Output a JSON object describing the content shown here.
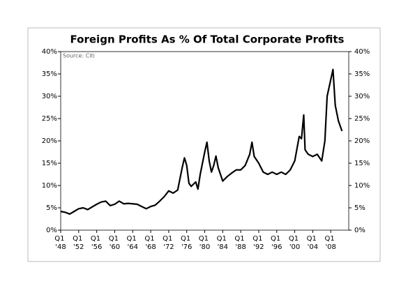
{
  "chart_data": {
    "type": "line",
    "title": "Foreign Profits As % Of Total Corporate Profits",
    "source": "Source: Citi",
    "x": [
      1948,
      1949,
      1950,
      1951,
      1952,
      1953,
      1954,
      1955,
      1956,
      1957,
      1958,
      1959,
      1960,
      1961,
      1962,
      1963,
      1964,
      1965,
      1966,
      1967,
      1968,
      1969,
      1970,
      1971,
      1972,
      1973,
      1974,
      1975,
      1975.5,
      1976,
      1976.5,
      1977,
      1978,
      1978.5,
      1979,
      1980,
      1980.5,
      1981,
      1981.5,
      1982,
      1982.5,
      1983,
      1984,
      1985,
      1986,
      1987,
      1988,
      1989,
      1990,
      1990.5,
      1991,
      1992,
      1993,
      1994,
      1995,
      1996,
      1997,
      1998,
      1999,
      2000,
      2001,
      2001.5,
      2002,
      2002.3,
      2003,
      2004,
      2005,
      2006,
      2006.7,
      2007.2,
      2008.5,
      2009,
      2009.7,
      2010.5
    ],
    "series": [
      {
        "color": "#000000",
        "values": [
          4.2,
          4.0,
          3.6,
          4.2,
          4.8,
          5.0,
          4.6,
          5.2,
          5.8,
          6.3,
          6.5,
          5.5,
          5.8,
          6.5,
          5.9,
          6.0,
          5.9,
          5.8,
          5.3,
          4.8,
          5.3,
          5.6,
          6.5,
          7.5,
          8.8,
          8.3,
          9.0,
          14.0,
          16.2,
          14.5,
          10.5,
          9.8,
          10.8,
          9.2,
          12.5,
          17.5,
          19.7,
          15.5,
          13.0,
          14.5,
          16.6,
          14.0,
          11.0,
          12.0,
          12.8,
          13.5,
          13.5,
          14.5,
          17.0,
          19.7,
          16.5,
          15.0,
          13.0,
          12.5,
          13.0,
          12.5,
          13.0,
          12.5,
          13.5,
          15.5,
          21.0,
          20.5,
          25.8,
          18.0,
          17.0,
          16.5,
          17.0,
          15.5,
          20.0,
          30.0,
          36.0,
          28.0,
          24.5,
          22.2
        ]
      }
    ],
    "xlim": [
      1948,
      2012
    ],
    "xticks": [
      {
        "value": 1948,
        "label": "Q1 '48"
      },
      {
        "value": 1952,
        "label": "Q1 '52"
      },
      {
        "value": 1956,
        "label": "Q1 '56"
      },
      {
        "value": 1960,
        "label": "Q1 '60"
      },
      {
        "value": 1964,
        "label": "Q1 '64"
      },
      {
        "value": 1968,
        "label": "Q1 '68"
      },
      {
        "value": 1972,
        "label": "Q1 '72"
      },
      {
        "value": 1976,
        "label": "Q1 '76"
      },
      {
        "value": 1980,
        "label": "Q1 '80"
      },
      {
        "value": 1984,
        "label": "Q1 '84"
      },
      {
        "value": 1988,
        "label": "Q1 '88"
      },
      {
        "value": 1992,
        "label": "Q1 '92"
      },
      {
        "value": 1996,
        "label": "Q1 '96"
      },
      {
        "value": 2000,
        "label": "Q1 '00"
      },
      {
        "value": 2004,
        "label": "Q1 '04"
      },
      {
        "value": 2008,
        "label": "Q1 '08"
      }
    ],
    "ylim": [
      0,
      40
    ],
    "yticks": [
      {
        "value": 0,
        "label": "0%"
      },
      {
        "value": 5,
        "label": "5%"
      },
      {
        "value": 10,
        "label": "10%"
      },
      {
        "value": 15,
        "label": "15%"
      },
      {
        "value": 20,
        "label": "20%"
      },
      {
        "value": 25,
        "label": "25%"
      },
      {
        "value": 30,
        "label": "30%"
      },
      {
        "value": 35,
        "label": "35%"
      },
      {
        "value": 40,
        "label": "40%"
      }
    ],
    "y2lim": [
      0,
      40
    ],
    "y2ticks": [
      {
        "value": 0,
        "label": "0%"
      },
      {
        "value": 5,
        "label": "5%"
      },
      {
        "value": 10,
        "label": "10%"
      },
      {
        "value": 15,
        "label": "15%"
      },
      {
        "value": 20,
        "label": "20%"
      },
      {
        "value": 25,
        "label": "25%"
      },
      {
        "value": 30,
        "label": "30%"
      },
      {
        "value": 35,
        "label": "35%"
      },
      {
        "value": 40,
        "label": "40%"
      }
    ]
  }
}
